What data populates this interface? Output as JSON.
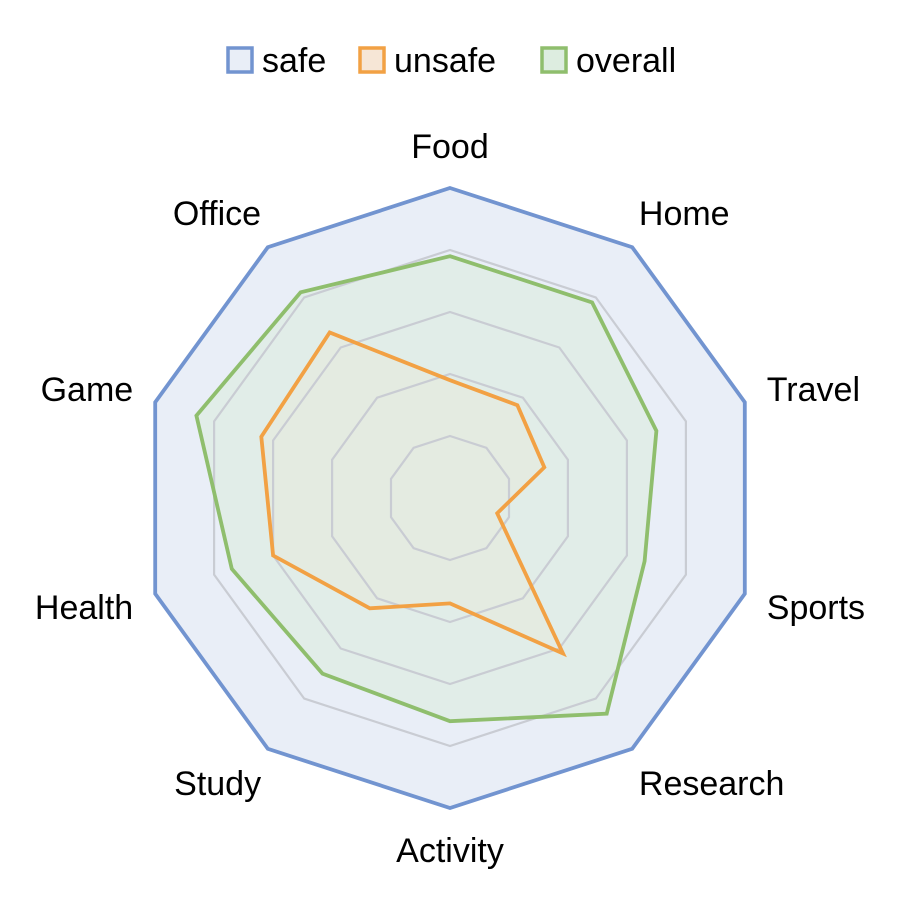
{
  "chart_data": {
    "type": "radar",
    "axes": [
      "Food",
      "Home",
      "Travel",
      "Sports",
      "Research",
      "Activity",
      "Study",
      "Health",
      "Game",
      "Office"
    ],
    "rmax": 5,
    "grid": true,
    "gridlines": [
      1,
      2,
      3,
      4
    ],
    "legend_position": "top",
    "series": [
      {
        "name": "safe",
        "color": "#7294D0",
        "fill": "#E9EEF7",
        "values": [
          5,
          5,
          5,
          5,
          5,
          5,
          5,
          5,
          5,
          5
        ]
      },
      {
        "name": "unsafe",
        "color": "#F2A144",
        "fill": "#F6E6D6",
        "values": [
          1.9,
          1.85,
          1.6,
          0.8,
          3.1,
          1.7,
          2.2,
          3.0,
          3.2,
          3.3
        ]
      },
      {
        "name": "overall",
        "color": "#8FBE6D",
        "fill": "#DDEDE0",
        "values": [
          3.9,
          3.9,
          3.5,
          3.3,
          4.3,
          3.6,
          3.5,
          3.7,
          4.3,
          4.1
        ]
      }
    ]
  }
}
